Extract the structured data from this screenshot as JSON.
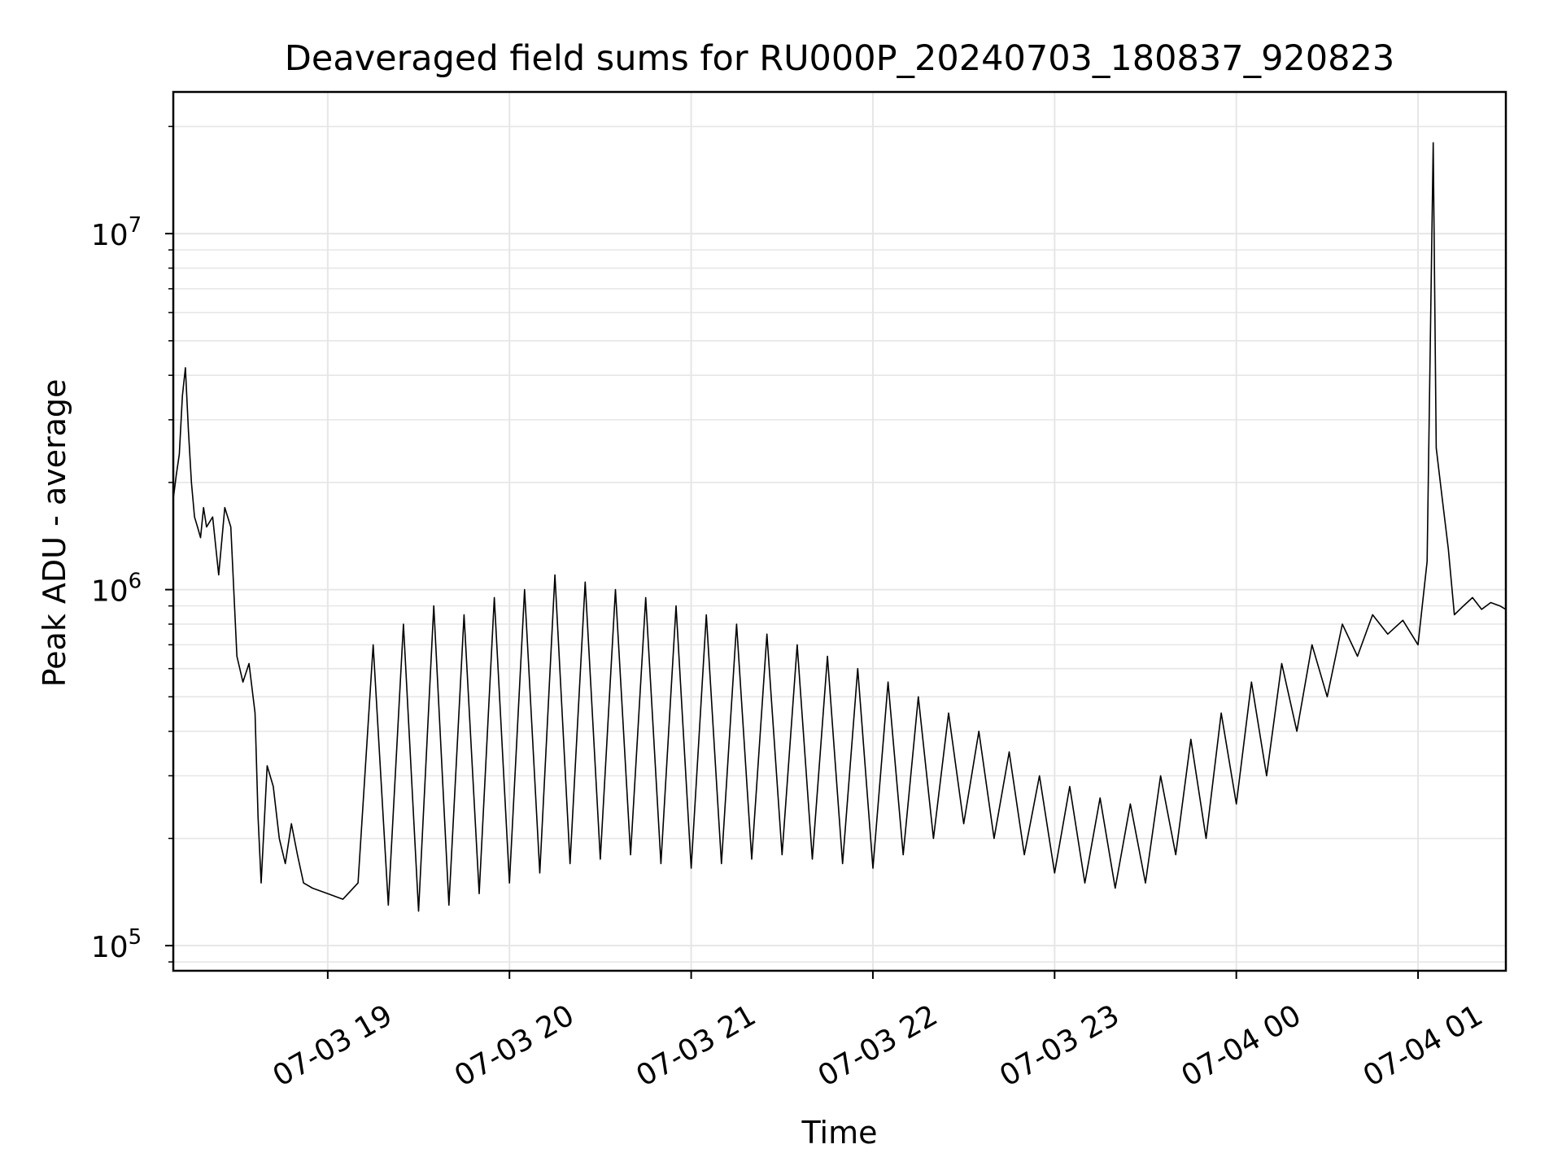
{
  "chart_data": {
    "type": "line",
    "title": "Deaveraged field sums for RU000P_20240703_180837_920823",
    "xlabel": "Time",
    "ylabel": "Peak ADU - average",
    "yscale": "log",
    "grid": true,
    "line_color": "#000000",
    "grid_color": "#e6e6e6",
    "xlim": [
      "2024-07-03 18:09",
      "2024-07-04 01:29"
    ],
    "ylim": [
      85000,
      25000000
    ],
    "x_ticks": [
      {
        "value": "2024-07-03 19:00",
        "label": "07-03 19"
      },
      {
        "value": "2024-07-03 20:00",
        "label": "07-03 20"
      },
      {
        "value": "2024-07-03 21:00",
        "label": "07-03 21"
      },
      {
        "value": "2024-07-03 22:00",
        "label": "07-03 22"
      },
      {
        "value": "2024-07-03 23:00",
        "label": "07-03 23"
      },
      {
        "value": "2024-07-04 00:00",
        "label": "07-04 00"
      },
      {
        "value": "2024-07-04 01:00",
        "label": "07-04 01"
      }
    ],
    "y_ticks": [
      {
        "value": 100000,
        "base": "10",
        "exp": "5"
      },
      {
        "value": 1000000,
        "base": "10",
        "exp": "6"
      },
      {
        "value": 10000000,
        "base": "10",
        "exp": "7"
      }
    ],
    "series": [
      {
        "points": [
          [
            "2024-07-03 18:09",
            1800000
          ],
          [
            "2024-07-03 18:10",
            2100000
          ],
          [
            "2024-07-03 18:11",
            2400000
          ],
          [
            "2024-07-03 18:12",
            3500000
          ],
          [
            "2024-07-03 18:13",
            4200000
          ],
          [
            "2024-07-03 18:14",
            2800000
          ],
          [
            "2024-07-03 18:15",
            2000000
          ],
          [
            "2024-07-03 18:16",
            1600000
          ],
          [
            "2024-07-03 18:17",
            1500000
          ],
          [
            "2024-07-03 18:18",
            1400000
          ],
          [
            "2024-07-03 18:19",
            1700000
          ],
          [
            "2024-07-03 18:20",
            1500000
          ],
          [
            "2024-07-03 18:22",
            1600000
          ],
          [
            "2024-07-03 18:24",
            1100000
          ],
          [
            "2024-07-03 18:26",
            1700000
          ],
          [
            "2024-07-03 18:28",
            1500000
          ],
          [
            "2024-07-03 18:30",
            650000
          ],
          [
            "2024-07-03 18:32",
            550000
          ],
          [
            "2024-07-03 18:34",
            620000
          ],
          [
            "2024-07-03 18:36",
            450000
          ],
          [
            "2024-07-03 18:37",
            230000
          ],
          [
            "2024-07-03 18:38",
            150000
          ],
          [
            "2024-07-03 18:40",
            320000
          ],
          [
            "2024-07-03 18:42",
            280000
          ],
          [
            "2024-07-03 18:44",
            200000
          ],
          [
            "2024-07-03 18:46",
            170000
          ],
          [
            "2024-07-03 18:48",
            220000
          ],
          [
            "2024-07-03 18:50",
            180000
          ],
          [
            "2024-07-03 18:52",
            150000
          ],
          [
            "2024-07-03 18:55",
            145000
          ],
          [
            "2024-07-03 19:00",
            140000
          ],
          [
            "2024-07-03 19:05",
            135000
          ],
          [
            "2024-07-03 19:10",
            150000
          ],
          [
            "2024-07-03 19:15",
            700000
          ],
          [
            "2024-07-03 19:20",
            130000
          ],
          [
            "2024-07-03 19:25",
            800000
          ],
          [
            "2024-07-03 19:30",
            125000
          ],
          [
            "2024-07-03 19:35",
            900000
          ],
          [
            "2024-07-03 19:40",
            130000
          ],
          [
            "2024-07-03 19:45",
            850000
          ],
          [
            "2024-07-03 19:50",
            140000
          ],
          [
            "2024-07-03 19:55",
            950000
          ],
          [
            "2024-07-03 20:00",
            150000
          ],
          [
            "2024-07-03 20:05",
            1000000
          ],
          [
            "2024-07-03 20:10",
            160000
          ],
          [
            "2024-07-03 20:15",
            1100000
          ],
          [
            "2024-07-03 20:20",
            170000
          ],
          [
            "2024-07-03 20:25",
            1050000
          ],
          [
            "2024-07-03 20:30",
            175000
          ],
          [
            "2024-07-03 20:35",
            1000000
          ],
          [
            "2024-07-03 20:40",
            180000
          ],
          [
            "2024-07-03 20:45",
            950000
          ],
          [
            "2024-07-03 20:50",
            170000
          ],
          [
            "2024-07-03 20:55",
            900000
          ],
          [
            "2024-07-03 21:00",
            165000
          ],
          [
            "2024-07-03 21:05",
            850000
          ],
          [
            "2024-07-03 21:10",
            170000
          ],
          [
            "2024-07-03 21:15",
            800000
          ],
          [
            "2024-07-03 21:20",
            175000
          ],
          [
            "2024-07-03 21:25",
            750000
          ],
          [
            "2024-07-03 21:30",
            180000
          ],
          [
            "2024-07-03 21:35",
            700000
          ],
          [
            "2024-07-03 21:40",
            175000
          ],
          [
            "2024-07-03 21:45",
            650000
          ],
          [
            "2024-07-03 21:50",
            170000
          ],
          [
            "2024-07-03 21:55",
            600000
          ],
          [
            "2024-07-03 22:00",
            165000
          ],
          [
            "2024-07-03 22:05",
            550000
          ],
          [
            "2024-07-03 22:10",
            180000
          ],
          [
            "2024-07-03 22:15",
            500000
          ],
          [
            "2024-07-03 22:20",
            200000
          ],
          [
            "2024-07-03 22:25",
            450000
          ],
          [
            "2024-07-03 22:30",
            220000
          ],
          [
            "2024-07-03 22:35",
            400000
          ],
          [
            "2024-07-03 22:40",
            200000
          ],
          [
            "2024-07-03 22:45",
            350000
          ],
          [
            "2024-07-03 22:50",
            180000
          ],
          [
            "2024-07-03 22:55",
            300000
          ],
          [
            "2024-07-03 23:00",
            160000
          ],
          [
            "2024-07-03 23:05",
            280000
          ],
          [
            "2024-07-03 23:10",
            150000
          ],
          [
            "2024-07-03 23:15",
            260000
          ],
          [
            "2024-07-03 23:20",
            145000
          ],
          [
            "2024-07-03 23:25",
            250000
          ],
          [
            "2024-07-03 23:30",
            150000
          ],
          [
            "2024-07-03 23:35",
            300000
          ],
          [
            "2024-07-03 23:40",
            180000
          ],
          [
            "2024-07-03 23:45",
            380000
          ],
          [
            "2024-07-03 23:50",
            200000
          ],
          [
            "2024-07-03 23:55",
            450000
          ],
          [
            "2024-07-04 00:00",
            250000
          ],
          [
            "2024-07-04 00:05",
            550000
          ],
          [
            "2024-07-04 00:10",
            300000
          ],
          [
            "2024-07-04 00:15",
            620000
          ],
          [
            "2024-07-04 00:20",
            400000
          ],
          [
            "2024-07-04 00:25",
            700000
          ],
          [
            "2024-07-04 00:30",
            500000
          ],
          [
            "2024-07-04 00:35",
            800000
          ],
          [
            "2024-07-04 00:40",
            650000
          ],
          [
            "2024-07-04 00:45",
            850000
          ],
          [
            "2024-07-04 00:50",
            750000
          ],
          [
            "2024-07-04 00:55",
            820000
          ],
          [
            "2024-07-04 01:00",
            700000
          ],
          [
            "2024-07-04 01:03",
            1200000
          ],
          [
            "2024-07-04 01:05",
            18000000
          ],
          [
            "2024-07-04 01:06",
            2500000
          ],
          [
            "2024-07-04 01:08",
            1800000
          ],
          [
            "2024-07-04 01:10",
            1300000
          ],
          [
            "2024-07-04 01:12",
            850000
          ],
          [
            "2024-07-04 01:15",
            900000
          ],
          [
            "2024-07-04 01:18",
            950000
          ],
          [
            "2024-07-04 01:21",
            880000
          ],
          [
            "2024-07-04 01:24",
            920000
          ],
          [
            "2024-07-04 01:27",
            900000
          ],
          [
            "2024-07-04 01:29",
            880000
          ]
        ]
      }
    ]
  }
}
